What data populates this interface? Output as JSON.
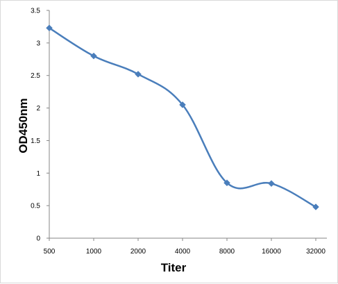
{
  "chart_data": {
    "type": "line",
    "title": "",
    "xlabel": "Titer",
    "ylabel": "OD450nm",
    "categories": [
      "500",
      "1000",
      "2000",
      "4000",
      "8000",
      "16000",
      "32000"
    ],
    "series": [
      {
        "values": [
          3.23,
          2.8,
          2.52,
          2.05,
          0.85,
          0.84,
          0.48
        ],
        "color": "#4a7ebb",
        "marker": "diamond",
        "smooth": true
      }
    ],
    "ylim": [
      0,
      3.5
    ],
    "yticks": [
      "0",
      "0.5",
      "1",
      "1.5",
      "2",
      "2.5",
      "3",
      "3.5"
    ],
    "grid": false,
    "legend": "none"
  }
}
